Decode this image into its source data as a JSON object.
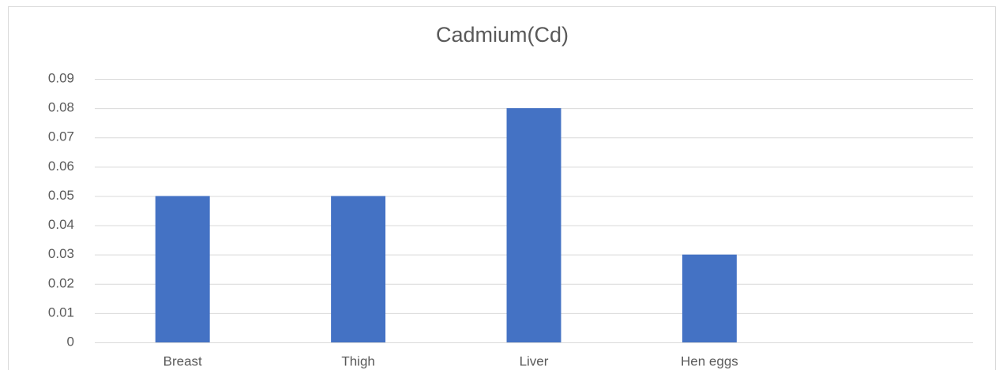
{
  "chart_data": {
    "type": "bar",
    "title": "Cadmium(Cd)",
    "categories": [
      "Breast",
      "Thigh",
      "Liver",
      "Hen eggs",
      null
    ],
    "values": [
      0.05,
      0.05,
      0.08,
      0.03,
      null
    ],
    "color": "#4472c4",
    "ylim": [
      0,
      0.09
    ],
    "yticks": [
      0,
      0.01,
      0.02,
      0.03,
      0.04,
      0.05,
      0.06,
      0.07,
      0.08,
      0.09
    ],
    "grid": true
  }
}
